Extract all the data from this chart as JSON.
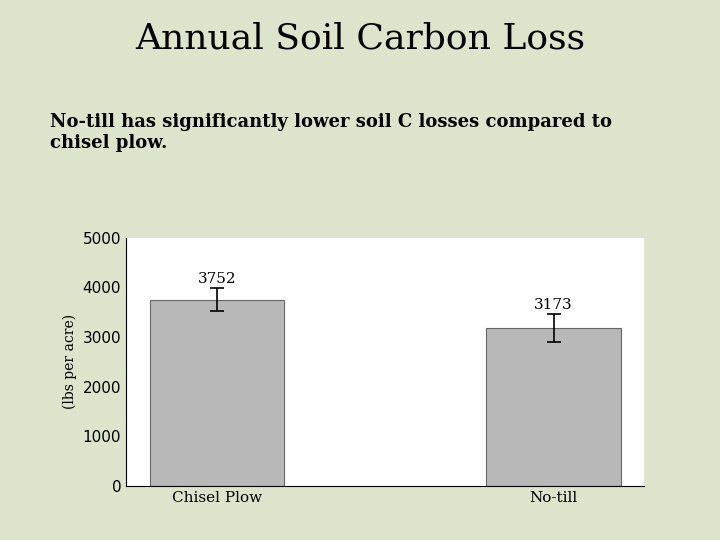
{
  "title": "Annual Soil Carbon Loss",
  "subtitle": "No-till has significantly lower soil C losses compared to\nchisel plow.",
  "categories": [
    "Chisel Plow",
    "No-till"
  ],
  "values": [
    3752,
    3173
  ],
  "errors": [
    230,
    280
  ],
  "bar_color": "#b8b8b8",
  "bar_edgecolor": "#666666",
  "ylabel": "(lbs per acre)",
  "ylim": [
    0,
    5000
  ],
  "yticks": [
    0,
    1000,
    2000,
    3000,
    4000,
    5000
  ],
  "background_color": "#dde4cc",
  "plot_bg_color": "#ffffff",
  "title_fontsize": 26,
  "subtitle_fontsize": 13,
  "label_fontsize": 11,
  "annotation_fontsize": 11,
  "ylabel_fontsize": 10,
  "bar_width": 0.4
}
